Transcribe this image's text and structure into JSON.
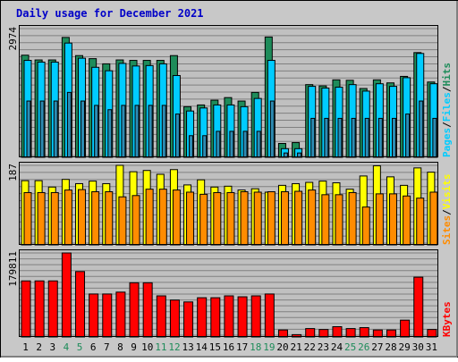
{
  "chart_data": [
    {
      "type": "bar",
      "title": "Daily usage for December 2021",
      "categories": [
        "1",
        "2",
        "3",
        "4",
        "5",
        "6",
        "7",
        "8",
        "9",
        "10",
        "11",
        "12",
        "13",
        "14",
        "15",
        "16",
        "17",
        "18",
        "19",
        "20",
        "21",
        "22",
        "23",
        "24",
        "25",
        "26",
        "27",
        "28",
        "29",
        "30",
        "31"
      ],
      "weekend_days": [
        "4",
        "5",
        "11",
        "12",
        "18",
        "19",
        "25",
        "26"
      ],
      "ylabel_parts": [
        "Pages",
        "Files",
        "Hits"
      ],
      "ymax_label": "2974",
      "ylim": [
        0,
        2974
      ],
      "series": [
        {
          "name": "Hits",
          "color": "#1e8c5a",
          "values": [
            2360,
            2250,
            2250,
            2770,
            2350,
            2280,
            2160,
            2250,
            2240,
            2240,
            2240,
            2350,
            1170,
            1210,
            1320,
            1380,
            1300,
            1500,
            2780,
            320,
            340,
            1680,
            1650,
            1790,
            1780,
            1590,
            1790,
            1720,
            1870,
            2420,
            1740
          ]
        },
        {
          "name": "Files",
          "color": "#00ccff",
          "values": [
            2240,
            2200,
            2200,
            2640,
            2290,
            2080,
            2000,
            2170,
            2110,
            2120,
            2160,
            1890,
            1070,
            1140,
            1210,
            1210,
            1170,
            1360,
            2240,
            200,
            200,
            1640,
            1600,
            1620,
            1680,
            1530,
            1700,
            1640,
            1840,
            2400,
            1700
          ]
        },
        {
          "name": "Pages",
          "color": "#2d8cb4",
          "values": [
            1300,
            1300,
            1300,
            1500,
            1300,
            1200,
            1100,
            1200,
            1200,
            1200,
            1200,
            1000,
            500,
            500,
            600,
            600,
            600,
            600,
            1300,
            100,
            100,
            900,
            900,
            900,
            900,
            900,
            900,
            900,
            1000,
            1300,
            900
          ]
        }
      ]
    },
    {
      "type": "bar",
      "ylabel_parts": [
        "Sites",
        "Visits"
      ],
      "ymax_label": "187",
      "ylim": [
        0,
        187
      ],
      "series": [
        {
          "name": "Visits",
          "color": "#ffff00",
          "values": [
            151,
            151,
            136,
            154,
            144,
            150,
            144,
            187,
            172,
            175,
            166,
            177,
            141,
            153,
            136,
            138,
            129,
            132,
            124,
            140,
            144,
            147,
            150,
            146,
            131,
            162,
            186,
            160,
            140,
            181,
            171
          ]
        },
        {
          "name": "Sites",
          "color": "#ff8c00",
          "values": [
            123,
            123,
            123,
            129,
            130,
            125,
            125,
            113,
            116,
            131,
            131,
            129,
            124,
            119,
            123,
            123,
            125,
            124,
            125,
            125,
            126,
            129,
            118,
            118,
            123,
            89,
            120,
            120,
            115,
            110,
            124
          ]
        }
      ]
    },
    {
      "type": "bar",
      "ylabel_parts": [
        "KBytes"
      ],
      "ymax_label": "179811",
      "ylim": [
        0,
        179811
      ],
      "series": [
        {
          "name": "KBytes",
          "color": "#ff0000",
          "values": [
            120000,
            120000,
            120000,
            179811,
            140000,
            92000,
            92000,
            96000,
            116000,
            116000,
            88000,
            79000,
            75000,
            84000,
            84000,
            88000,
            86000,
            88000,
            92000,
            15000,
            5000,
            18000,
            16000,
            22000,
            18000,
            20000,
            15000,
            15000,
            36000,
            128000,
            16000
          ]
        }
      ]
    }
  ]
}
